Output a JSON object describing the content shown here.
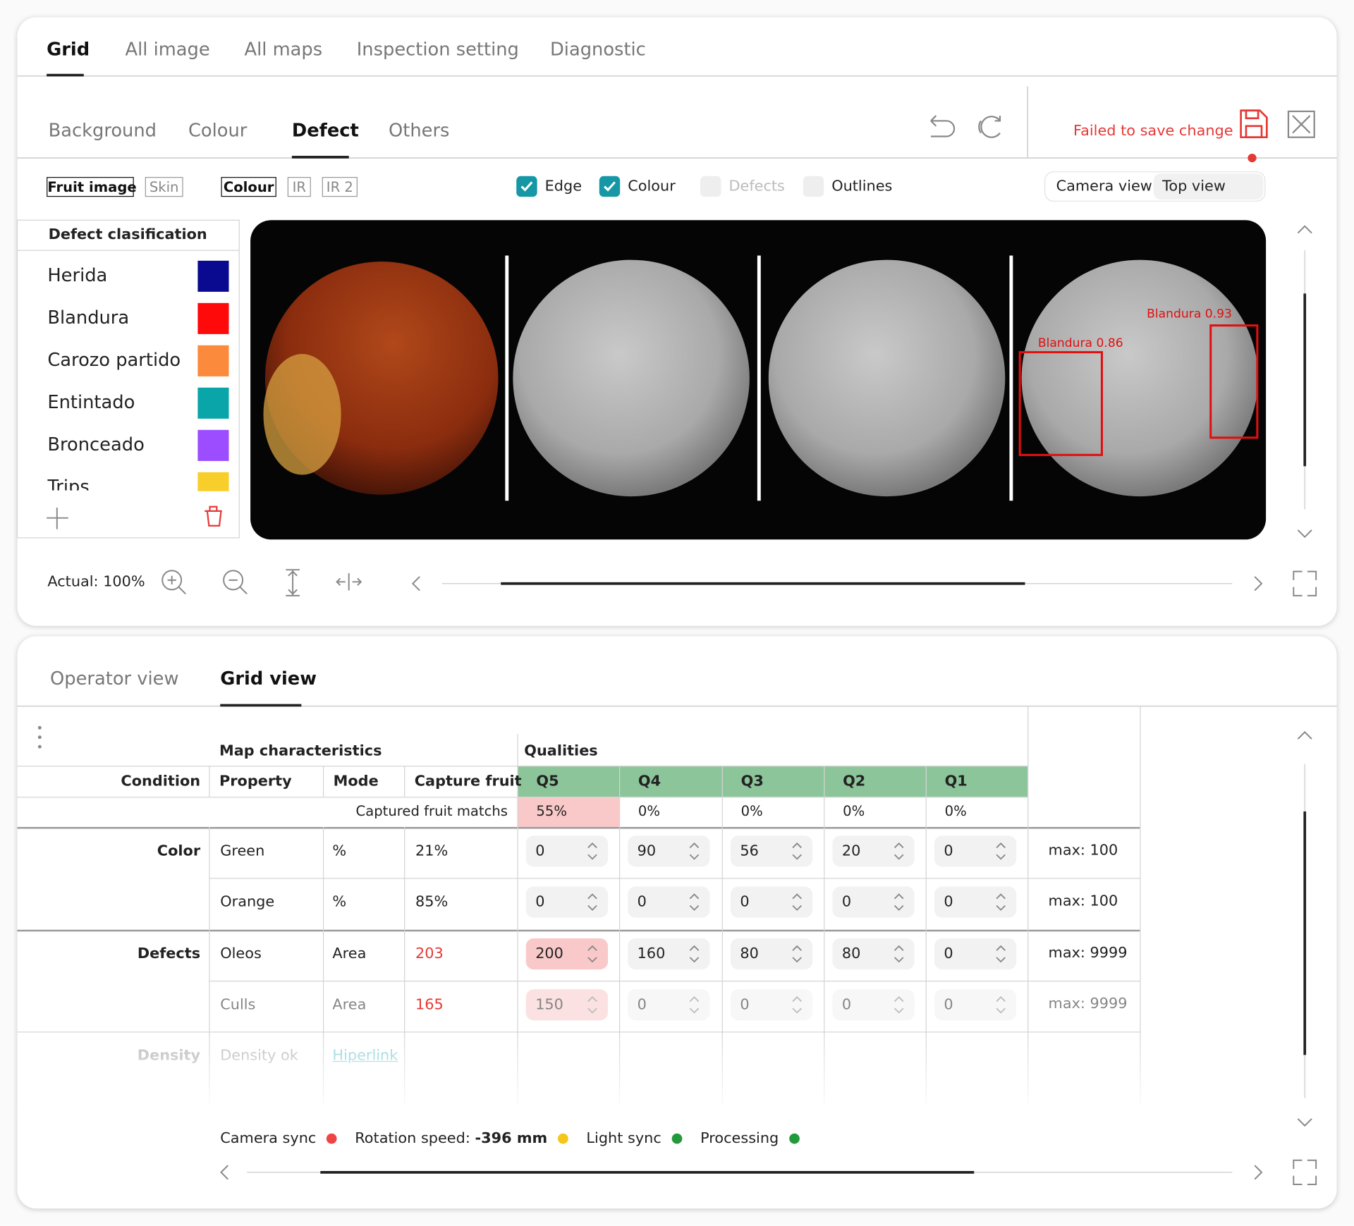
{
  "top_tabs": [
    "Grid",
    "All image",
    "All maps",
    "Inspection setting",
    "Diagnostic"
  ],
  "sub_tabs": [
    "Background",
    "Colour",
    "Defect",
    "Others"
  ],
  "save_status": "Failed to save change",
  "image_toggles": [
    "Fruit image",
    "Skin",
    "Colour",
    "IR",
    "IR 2"
  ],
  "checkboxes": [
    {
      "label": "Edge",
      "checked": true
    },
    {
      "label": "Colour",
      "checked": true
    },
    {
      "label": "Defects",
      "checked": false,
      "disabled": true
    },
    {
      "label": "Outlines",
      "checked": false
    }
  ],
  "view_select": {
    "label": "Camera view",
    "value": "Top view"
  },
  "defect_classification": {
    "title": "Defect clasification",
    "items": [
      {
        "name": "Herida",
        "color": "#0a0a90"
      },
      {
        "name": "Blandura",
        "color": "#ff0a0a"
      },
      {
        "name": "Carozo partido",
        "color": "#fb8a3c"
      },
      {
        "name": "Entintado",
        "color": "#0aa5a8"
      },
      {
        "name": "Bronceado",
        "color": "#9b4dff"
      },
      {
        "name": "Trips",
        "color": "#f8cf2a"
      }
    ]
  },
  "annotations": [
    "Blandura 0.86",
    "Blandura 0.93"
  ],
  "zoom_label": "Actual: 100%",
  "bottom_tabs": [
    "Operator view",
    "Grid view"
  ],
  "table": {
    "group_headers": [
      "Map characteristics",
      "Qualities"
    ],
    "headers": [
      "Condition",
      "Property",
      "Mode",
      "Capture fruit",
      "Q5",
      "Q4",
      "Q3",
      "Q2",
      "Q1"
    ],
    "match_row": {
      "label": "Captured fruit matchs",
      "values": [
        "55%",
        "0%",
        "0%",
        "0%",
        "0%"
      ]
    },
    "rows": [
      {
        "condition": "Color",
        "property": "Green",
        "mode": "%",
        "capture": "21%",
        "values": [
          "0",
          "90",
          "56",
          "20",
          "0"
        ],
        "max": "max: 100"
      },
      {
        "condition": null,
        "property": "Orange",
        "mode": "%",
        "capture": "85%",
        "values": [
          "0",
          "0",
          "0",
          "0",
          "0"
        ],
        "max": "max: 100"
      },
      {
        "condition": "Defects",
        "property": "Oleos",
        "mode": "Area",
        "capture": "203",
        "values": [
          "200",
          "160",
          "80",
          "80",
          "0"
        ],
        "max": "max: 9999"
      },
      {
        "condition": null,
        "property": "Culls",
        "mode": "Area",
        "capture": "165",
        "values": [
          "150",
          "0",
          "0",
          "0",
          "0"
        ],
        "max": "max: 9999"
      }
    ],
    "density_row": {
      "condition": "Density",
      "property": "Density ok",
      "link": "Hiperlink"
    }
  },
  "status": [
    {
      "label": "Camera sync",
      "color": "#ef4444"
    },
    {
      "label": "Rotation speed:",
      "value": "-396 mm",
      "color": "#f5c518"
    },
    {
      "label": "Light sync",
      "color": "#22993a"
    },
    {
      "label": "Processing",
      "color": "#22993a"
    }
  ]
}
